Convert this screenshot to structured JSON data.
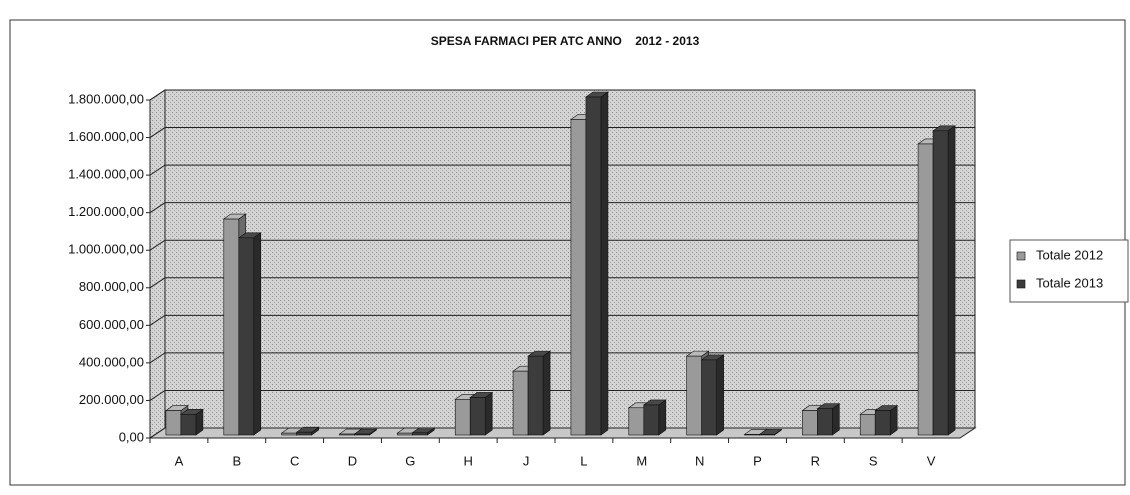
{
  "chart_data": {
    "type": "bar3d",
    "title": "SPESA FARMACI PER ATC ANNO    2012 - 2013",
    "categories": [
      "A",
      "B",
      "C",
      "D",
      "G",
      "H",
      "J",
      "L",
      "M",
      "N",
      "P",
      "R",
      "S",
      "V"
    ],
    "series": [
      {
        "name": "Totale 2012",
        "color": "#9a9a9a",
        "values": [
          130000,
          1150000,
          10000,
          5000,
          10000,
          190000,
          340000,
          1680000,
          145000,
          420000,
          3000,
          130000,
          110000,
          1550000
        ]
      },
      {
        "name": "Totale 2013",
        "color": "#3c3c3c",
        "values": [
          110000,
          1050000,
          15000,
          5000,
          12000,
          200000,
          420000,
          1800000,
          160000,
          400000,
          3000,
          140000,
          130000,
          1620000
        ]
      }
    ],
    "ylim": [
      0,
      1800000
    ],
    "yticks": [
      {
        "value": 0,
        "label": "0,00"
      },
      {
        "value": 200000,
        "label": "200.000,00"
      },
      {
        "value": 400000,
        "label": "400.000,00"
      },
      {
        "value": 600000,
        "label": "600.000,00"
      },
      {
        "value": 800000,
        "label": "800.000,00"
      },
      {
        "value": 1000000,
        "label": "1.000.000,00"
      },
      {
        "value": 1200000,
        "label": "1.200.000,00"
      },
      {
        "value": 1400000,
        "label": "1.400.000,00"
      },
      {
        "value": 1600000,
        "label": "1.600.000,00"
      },
      {
        "value": 1800000,
        "label": "1.800.000,00"
      }
    ],
    "grid": true,
    "legend": "right"
  }
}
